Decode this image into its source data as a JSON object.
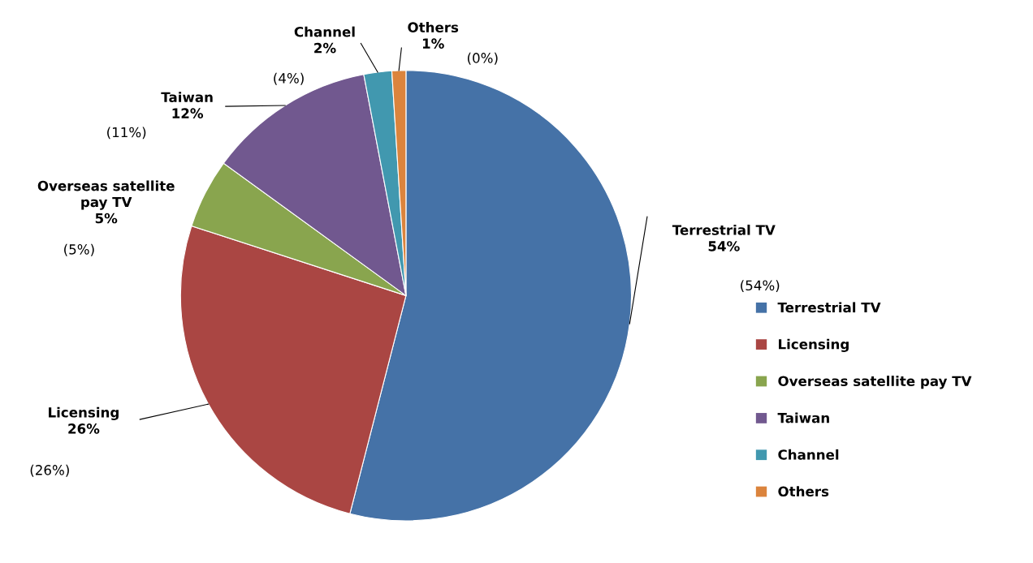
{
  "chart_data": {
    "type": "pie",
    "categories": [
      "Terrestrial TV",
      "Licensing",
      "Overseas satellite pay TV",
      "Taiwan",
      "Channel",
      "Others"
    ],
    "values": [
      54,
      26,
      5,
      12,
      2,
      1
    ],
    "colors": [
      "#4572a7",
      "#aa4643",
      "#89a54e",
      "#71588f",
      "#4198af",
      "#db843d"
    ],
    "value_labels": [
      "Terrestrial TV\n54%",
      "Licensing\n26%",
      "Overseas satellite\npay TV\n5%",
      "Taiwan\n12%",
      "Channel\n2%",
      "Others\n1%"
    ],
    "annotations": [
      "(54%)",
      "(26%)",
      "(5%)",
      "(11%)",
      "(4%)",
      "(0%)"
    ],
    "legend": "right"
  }
}
